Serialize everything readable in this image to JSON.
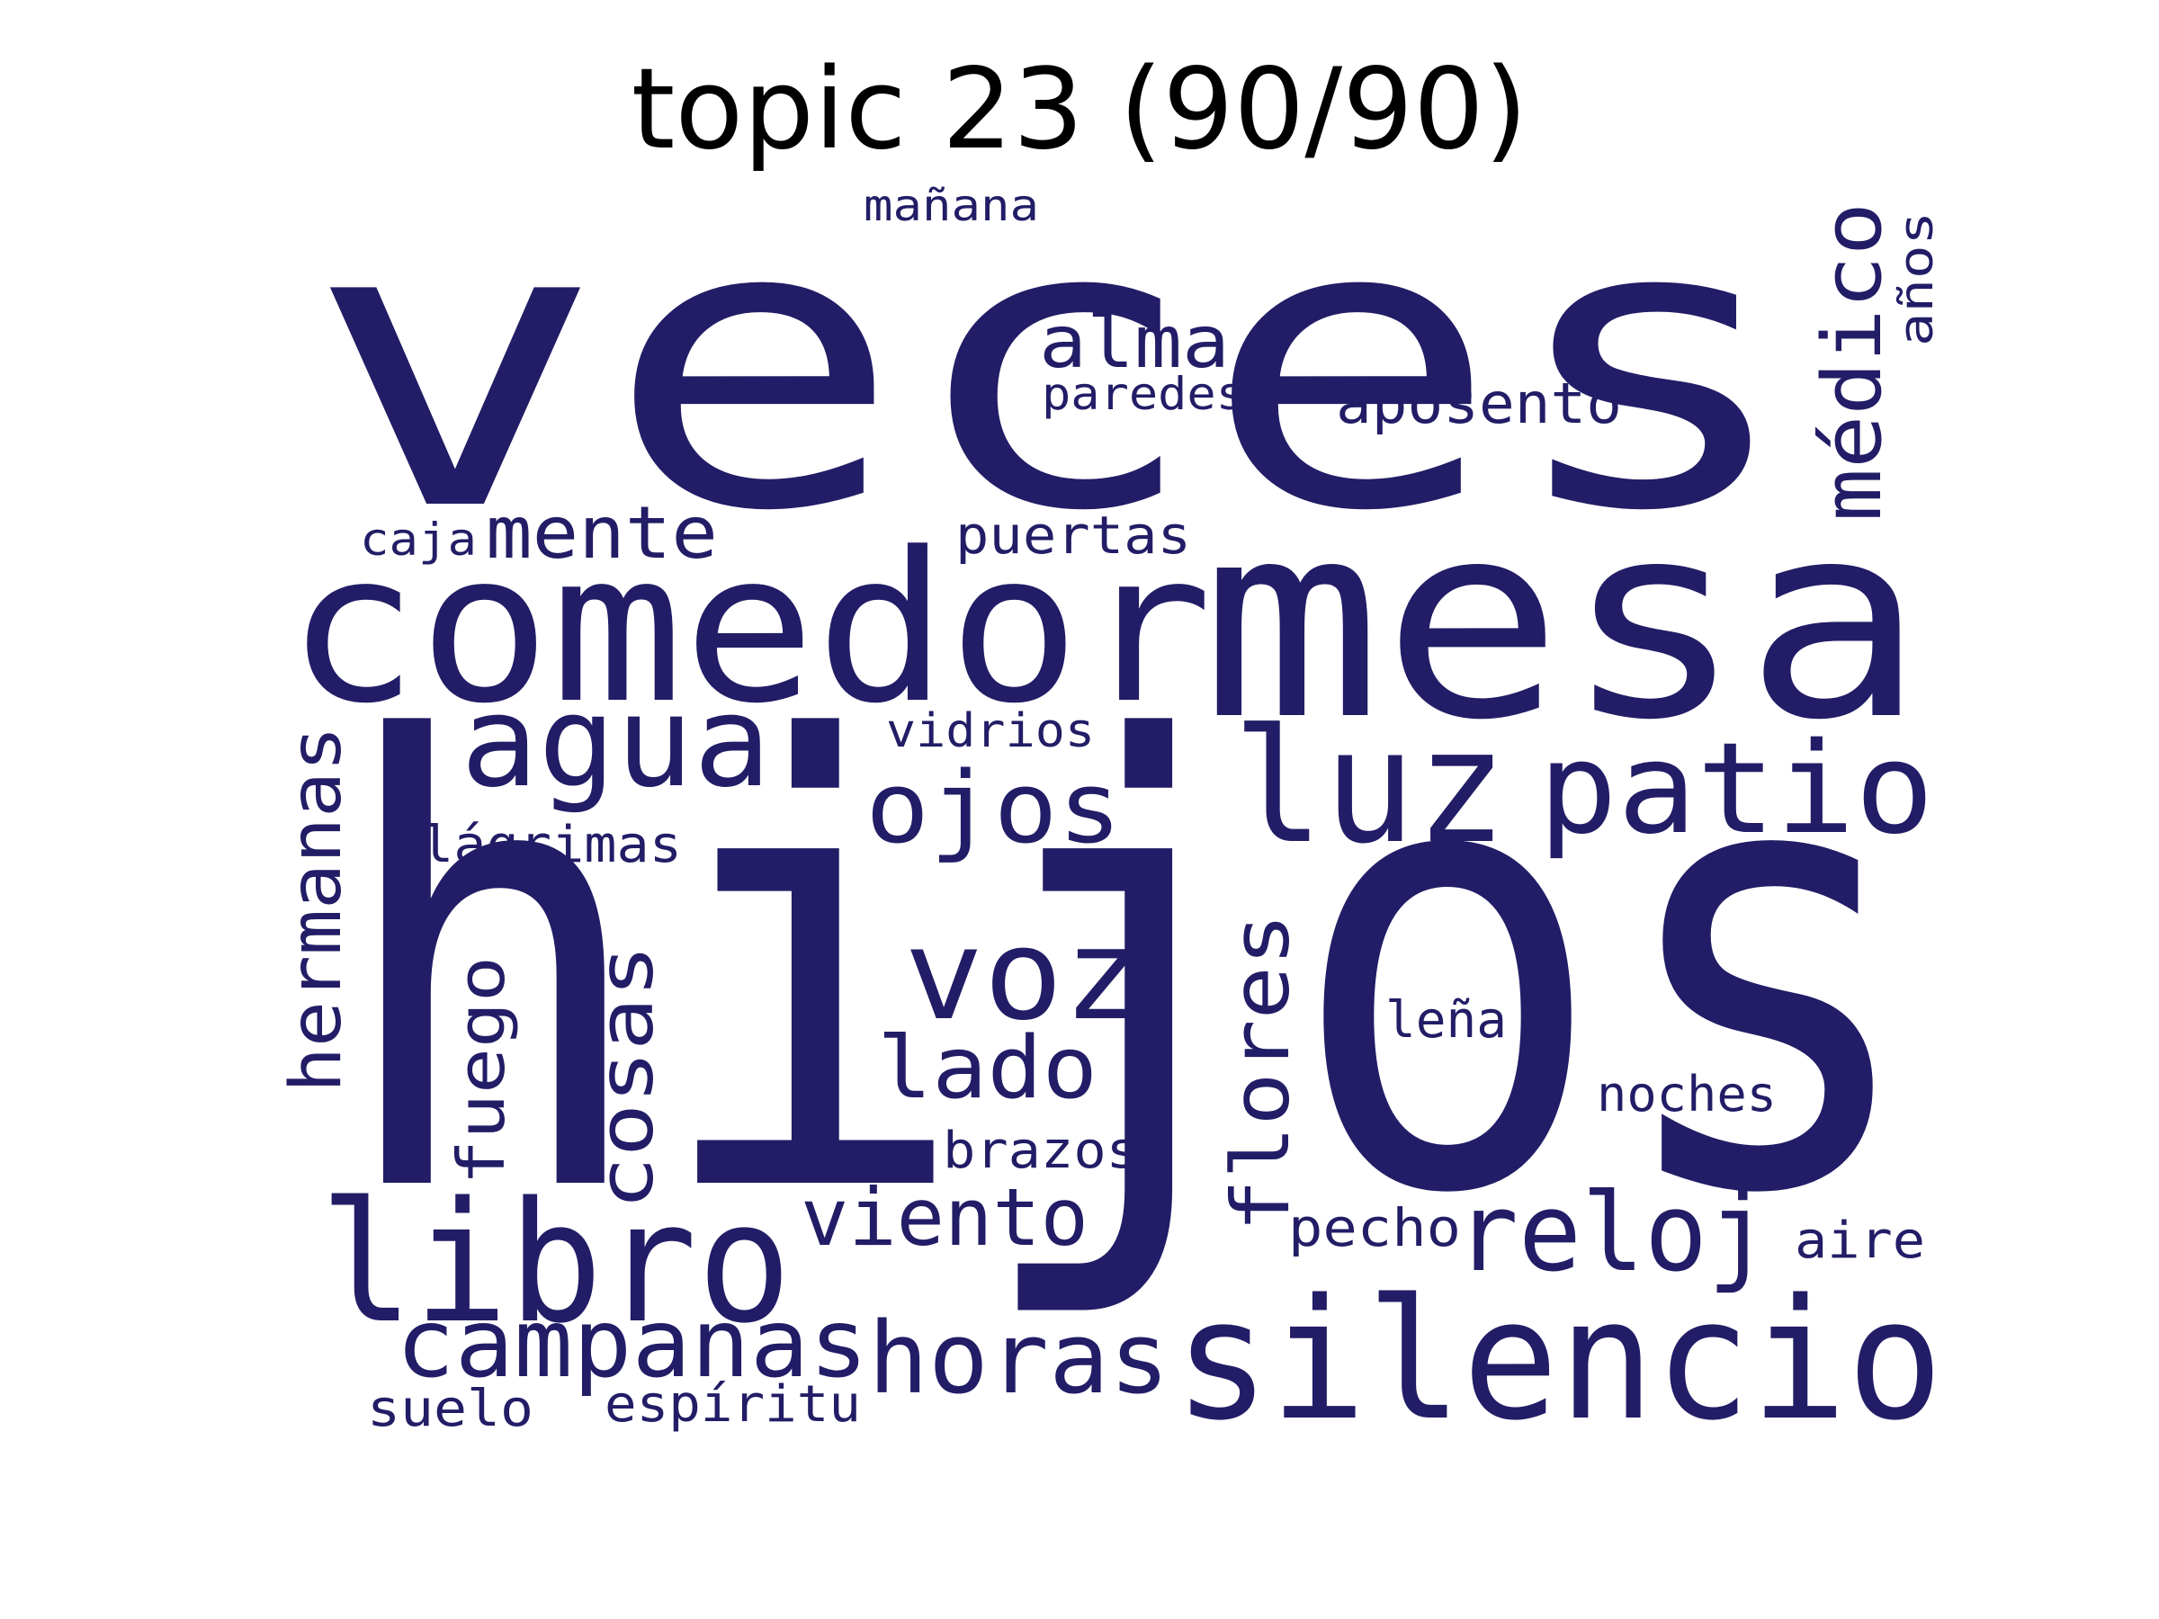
{
  "title": "topic 23 (90/90)",
  "word_color": "#221d66",
  "words": [
    "veces",
    "hijos",
    "comedor",
    "mesa",
    "agua",
    "ojos",
    "luz",
    "patio",
    "voz",
    "lado",
    "libro",
    "silencio",
    "campanas",
    "horas",
    "reloj",
    "viento",
    "alma",
    "aposento",
    "médico",
    "años",
    "mañana",
    "paredes",
    "mente",
    "caja",
    "puertas",
    "vidrios",
    "lágrimas",
    "hermanas",
    "fuego",
    "cosas",
    "flores",
    "leña",
    "noches",
    "brazos",
    "pecho",
    "aire",
    "suelo",
    "espíritu"
  ]
}
